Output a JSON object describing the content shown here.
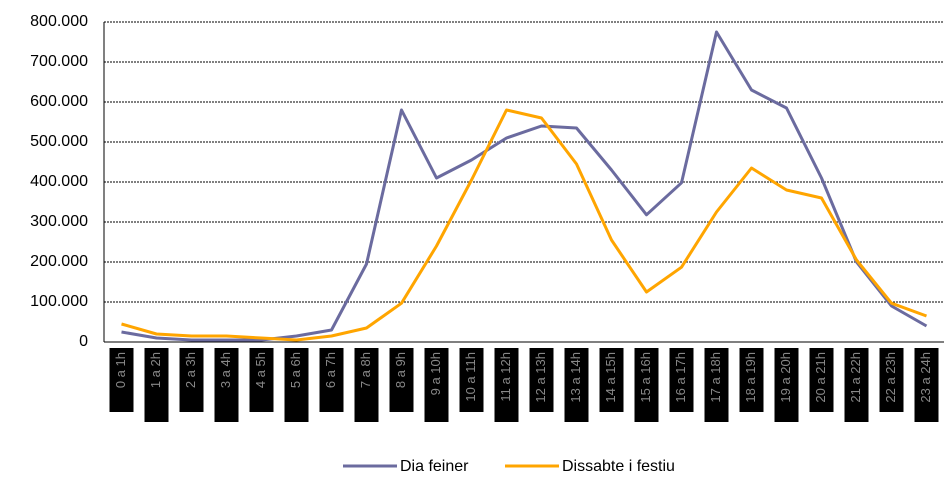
{
  "chart_data": {
    "type": "line",
    "categories": [
      "0 a 1h",
      "1 a 2h",
      "2 a 3h",
      "3 a 4h",
      "4 a 5h",
      "5 a 6h",
      "6 a 7h",
      "7 a 8h",
      "8 a 9h",
      "9 a 10h",
      "10 a 11h",
      "11 a 12h",
      "12 a 13h",
      "13 a 14h",
      "14 a 15h",
      "15 a 16h",
      "16 a 17h",
      "17 a 18h",
      "18 a 19h",
      "19 a 20h",
      "20 a 21h",
      "21 a 22h",
      "22 a 23h",
      "23 a 24h"
    ],
    "series": [
      {
        "name": "Dia feiner",
        "color": "#6b6b9f",
        "values": [
          25000,
          10000,
          5000,
          5000,
          5000,
          15000,
          30000,
          195000,
          580000,
          410000,
          455000,
          510000,
          540000,
          535000,
          430000,
          318000,
          398000,
          775000,
          630000,
          585000,
          410000,
          200000,
          90000,
          40000
        ]
      },
      {
        "name": "Dissabte i festiu",
        "color": "#ffa500",
        "values": [
          45000,
          20000,
          15000,
          15000,
          10000,
          5000,
          15000,
          35000,
          97000,
          240000,
          405000,
          580000,
          560000,
          445000,
          255000,
          125000,
          187000,
          325000,
          435000,
          380000,
          360000,
          205000,
          97000,
          65000
        ]
      }
    ],
    "ylim": [
      0,
      800000
    ],
    "yticks": [
      {
        "value": 0,
        "label": "0"
      },
      {
        "value": 100000,
        "label": "100.000"
      },
      {
        "value": 200000,
        "label": "200.000"
      },
      {
        "value": 300000,
        "label": "300.000"
      },
      {
        "value": 400000,
        "label": "400.000"
      },
      {
        "value": 500000,
        "label": "500.000"
      },
      {
        "value": 600000,
        "label": "600.000"
      },
      {
        "value": 700000,
        "label": "700.000"
      },
      {
        "value": 800000,
        "label": "800.000"
      }
    ],
    "grid": true,
    "legend": "bottom"
  }
}
